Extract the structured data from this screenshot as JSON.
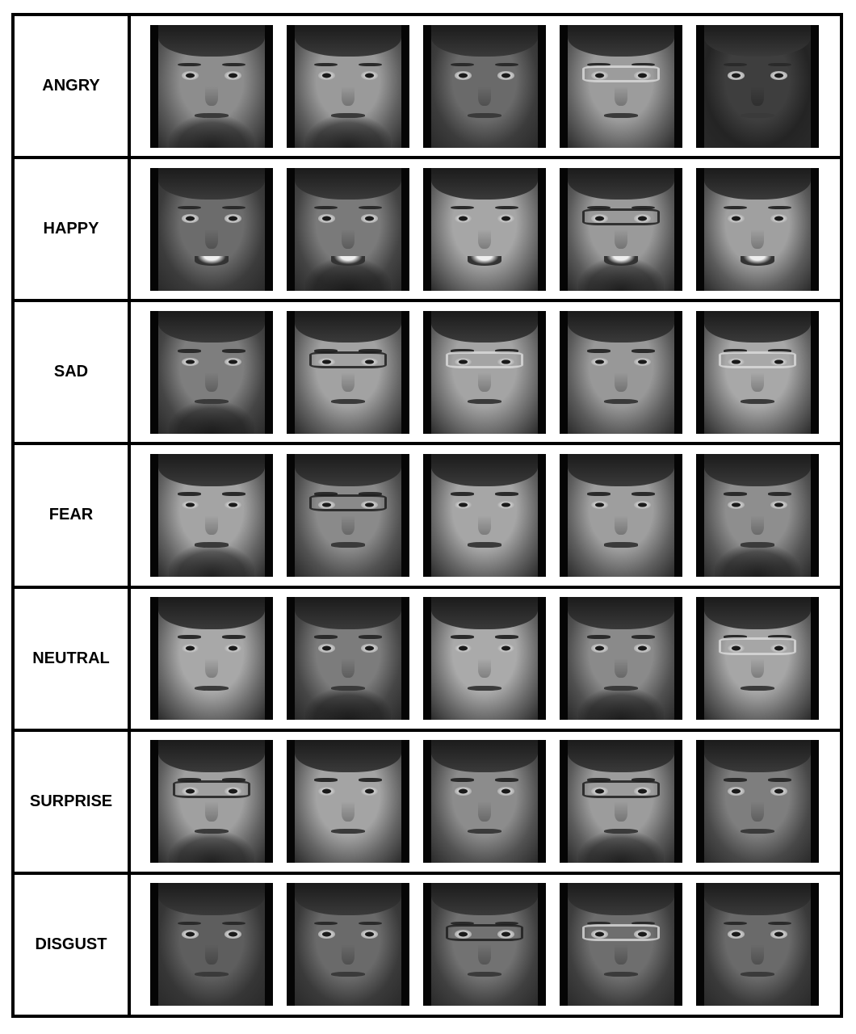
{
  "rows": [
    {
      "label": "ANGRY",
      "faces": [
        {
          "skin": "#8d8d8d",
          "skin2": "#5a5a5a",
          "hair": true,
          "beard": true,
          "glasses": false,
          "smile": false
        },
        {
          "skin": "#9a9a9a",
          "skin2": "#5e5e5e",
          "hair": true,
          "beard": true,
          "glasses": false,
          "smile": false
        },
        {
          "skin": "#6a6a6a",
          "skin2": "#3c3c3c",
          "hair": true,
          "beard": false,
          "glasses": false,
          "smile": false
        },
        {
          "skin": "#9c9c9c",
          "skin2": "#626262",
          "hair": true,
          "beard": false,
          "glasses": "light",
          "smile": false
        },
        {
          "skin": "#3e3e3e",
          "skin2": "#242424",
          "hair": true,
          "beard": false,
          "glasses": false,
          "smile": false
        }
      ]
    },
    {
      "label": "HAPPY",
      "faces": [
        {
          "skin": "#6c6c6c",
          "skin2": "#3c3c3c",
          "hair": true,
          "beard": false,
          "glasses": false,
          "smile": true
        },
        {
          "skin": "#7a7a7a",
          "skin2": "#444444",
          "hair": true,
          "beard": true,
          "glasses": false,
          "smile": true
        },
        {
          "skin": "#a6a6a6",
          "skin2": "#6a6a6a",
          "hair": true,
          "beard": false,
          "glasses": false,
          "smile": true
        },
        {
          "skin": "#9a9a9a",
          "skin2": "#5a5a5a",
          "hair": true,
          "beard": true,
          "glasses": "dark",
          "smile": true
        },
        {
          "skin": "#a0a0a0",
          "skin2": "#5c5c5c",
          "hair": true,
          "beard": false,
          "glasses": false,
          "smile": true
        }
      ]
    },
    {
      "label": "SAD",
      "faces": [
        {
          "skin": "#7e7e7e",
          "skin2": "#454545",
          "hair": true,
          "beard": true,
          "glasses": false,
          "smile": false
        },
        {
          "skin": "#a2a2a2",
          "skin2": "#646464",
          "hair": true,
          "beard": false,
          "glasses": "dark",
          "smile": false
        },
        {
          "skin": "#a4a4a4",
          "skin2": "#6a6a6a",
          "hair": true,
          "beard": false,
          "glasses": "light",
          "smile": false
        },
        {
          "skin": "#989898",
          "skin2": "#5c5c5c",
          "hair": true,
          "beard": false,
          "glasses": false,
          "smile": false
        },
        {
          "skin": "#a8a8a8",
          "skin2": "#686868",
          "hair": true,
          "beard": false,
          "glasses": "light",
          "smile": false
        }
      ]
    },
    {
      "label": "FEAR",
      "faces": [
        {
          "skin": "#a4a4a4",
          "skin2": "#646464",
          "hair": true,
          "beard": true,
          "glasses": false,
          "smile": false
        },
        {
          "skin": "#8a8a8a",
          "skin2": "#525252",
          "hair": true,
          "beard": false,
          "glasses": "dark",
          "smile": false
        },
        {
          "skin": "#a6a6a6",
          "skin2": "#666666",
          "hair": true,
          "beard": false,
          "glasses": false,
          "smile": false
        },
        {
          "skin": "#9e9e9e",
          "skin2": "#606060",
          "hair": true,
          "beard": false,
          "glasses": false,
          "smile": false
        },
        {
          "skin": "#8e8e8e",
          "skin2": "#545454",
          "hair": true,
          "beard": true,
          "glasses": false,
          "smile": false
        }
      ]
    },
    {
      "label": "NEUTRAL",
      "faces": [
        {
          "skin": "#a8a8a8",
          "skin2": "#686868",
          "hair": true,
          "beard": false,
          "glasses": false,
          "smile": false
        },
        {
          "skin": "#7c7c7c",
          "skin2": "#464646",
          "hair": true,
          "beard": true,
          "glasses": false,
          "smile": false
        },
        {
          "skin": "#aaaaaa",
          "skin2": "#6a6a6a",
          "hair": true,
          "beard": false,
          "glasses": false,
          "smile": false
        },
        {
          "skin": "#8a8a8a",
          "skin2": "#505050",
          "hair": true,
          "beard": true,
          "glasses": false,
          "smile": false
        },
        {
          "skin": "#a6a6a6",
          "skin2": "#666666",
          "hair": true,
          "beard": false,
          "glasses": "light",
          "smile": false
        }
      ]
    },
    {
      "label": "SURPRISE",
      "faces": [
        {
          "skin": "#a0a0a0",
          "skin2": "#606060",
          "hair": true,
          "beard": true,
          "glasses": "dark",
          "smile": false
        },
        {
          "skin": "#a4a4a4",
          "skin2": "#646464",
          "hair": true,
          "beard": false,
          "glasses": false,
          "smile": false
        },
        {
          "skin": "#8c8c8c",
          "skin2": "#525252",
          "hair": true,
          "beard": false,
          "glasses": false,
          "smile": false
        },
        {
          "skin": "#9c9c9c",
          "skin2": "#5c5c5c",
          "hair": true,
          "beard": true,
          "glasses": "dark",
          "smile": false
        },
        {
          "skin": "#7e7e7e",
          "skin2": "#484848",
          "hair": true,
          "beard": false,
          "glasses": false,
          "smile": false
        }
      ]
    },
    {
      "label": "DISGUST",
      "faces": [
        {
          "skin": "#5e5e5e",
          "skin2": "#363636",
          "hair": true,
          "beard": false,
          "glasses": false,
          "smile": false
        },
        {
          "skin": "#6a6a6a",
          "skin2": "#3a3a3a",
          "hair": true,
          "beard": false,
          "glasses": false,
          "smile": false
        },
        {
          "skin": "#727272",
          "skin2": "#404040",
          "hair": true,
          "beard": false,
          "glasses": "dark",
          "smile": false
        },
        {
          "skin": "#6e6e6e",
          "skin2": "#3e3e3e",
          "hair": true,
          "beard": false,
          "glasses": "light",
          "smile": false
        },
        {
          "skin": "#6a6a6a",
          "skin2": "#3a3a3a",
          "hair": true,
          "beard": false,
          "glasses": false,
          "smile": false
        }
      ]
    }
  ]
}
